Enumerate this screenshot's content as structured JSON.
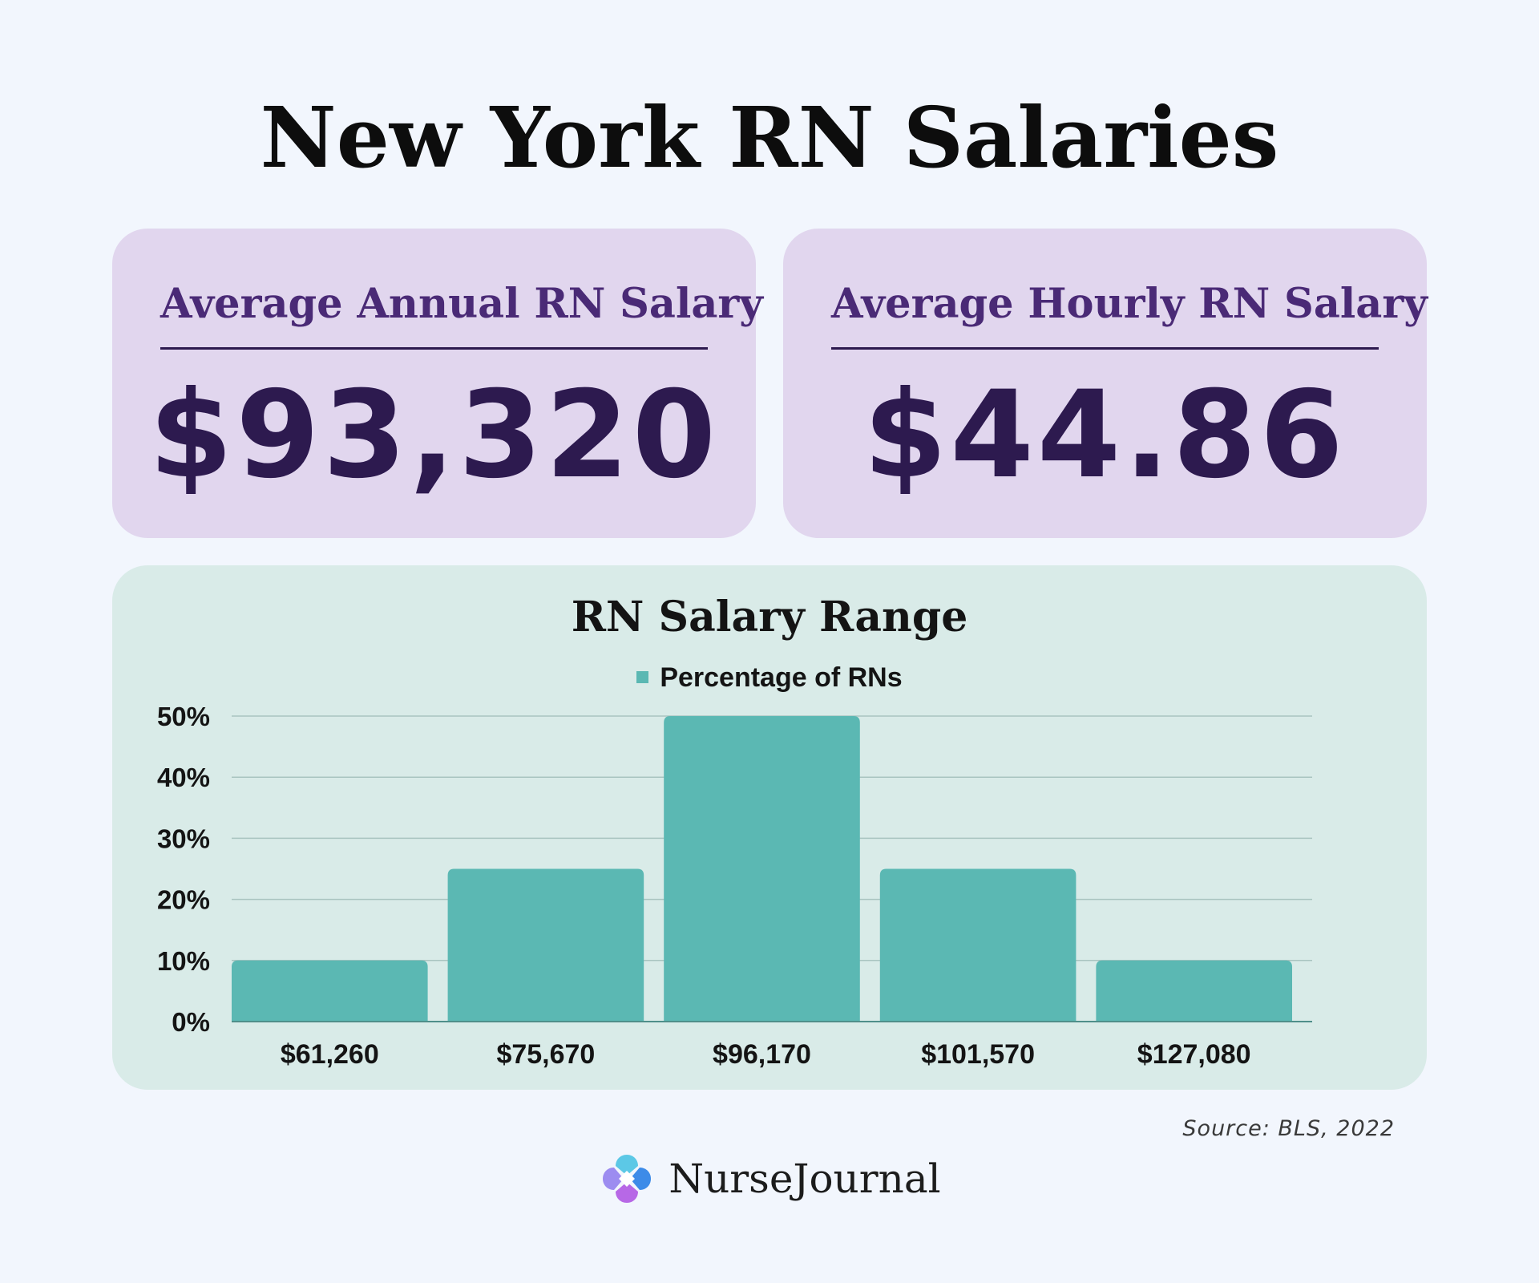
{
  "page": {
    "title": "New York RN Salaries"
  },
  "stats": {
    "annual": {
      "label": "Average Annual RN Salary",
      "value": "$93,320"
    },
    "hourly": {
      "label": "Average Hourly RN Salary",
      "value": "$44.86"
    }
  },
  "colors": {
    "background": "#f2f6fd",
    "stat_card": "#e1d6ee",
    "stat_text": "#2d1a4f",
    "chart_panel": "#d9ebe8",
    "bar": "#5bb8b3"
  },
  "chart_data": {
    "type": "bar",
    "title": "RN Salary Range",
    "categories": [
      "$61,260",
      "$75,670",
      "$96,170",
      "$101,570",
      "$127,080"
    ],
    "series": [
      {
        "name": "Percentage of RNs",
        "values": [
          10,
          25,
          50,
          25,
          10
        ]
      }
    ],
    "y_ticks": [
      "0%",
      "10%",
      "20%",
      "30%",
      "40%",
      "50%"
    ],
    "ylim": [
      0,
      50
    ],
    "xlabel": "",
    "ylabel": "",
    "grid": true,
    "legend_position": "top-center"
  },
  "footer": {
    "source": "Source: BLS, 2022",
    "brand_name": "NurseJournal",
    "logo_icon": "nursejournal-logo-icon"
  }
}
